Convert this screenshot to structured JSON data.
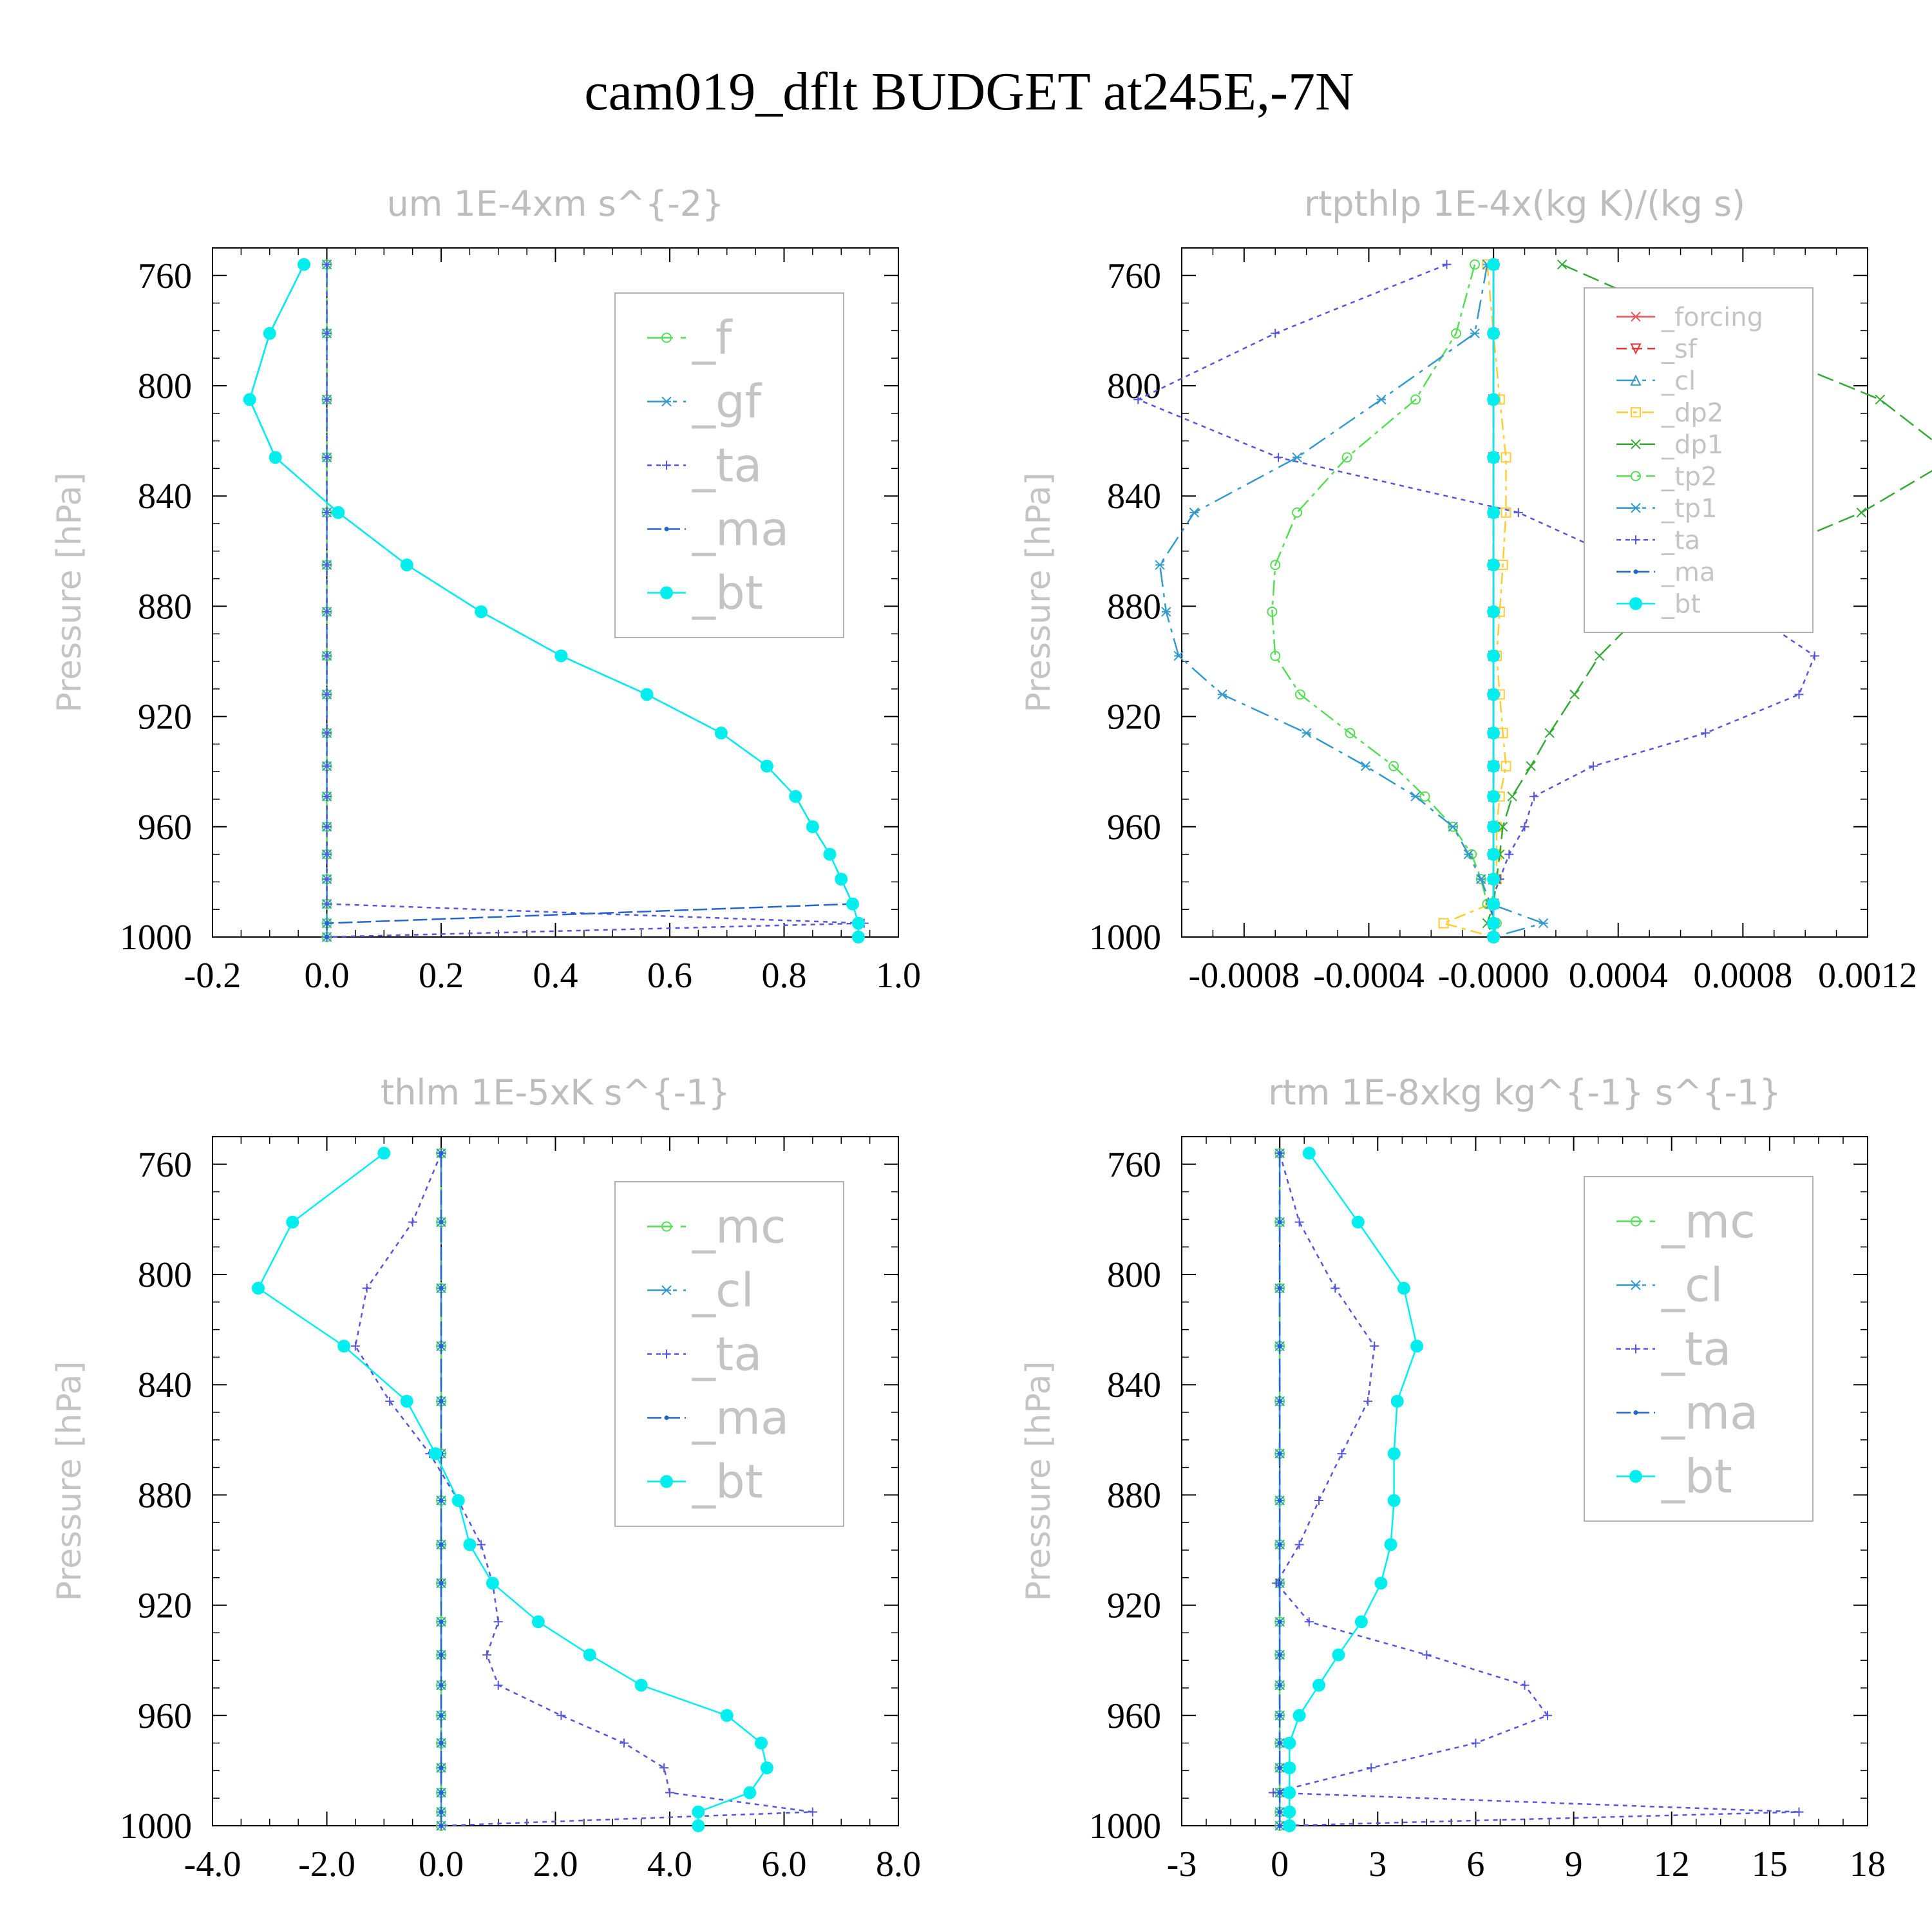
{
  "figure": {
    "title": "cam019_dflt  BUDGET at245E,-7N",
    "ylabel": "Pressure [hPa]"
  },
  "colors": {
    "f": "#55dd55",
    "gf": "#3399cc",
    "ta": "#5555dd",
    "ma": "#2266cc",
    "bt": "#00eeee",
    "mc": "#55dd55",
    "cl": "#3399cc",
    "forcing": "#ee5555",
    "sf": "#ee3333",
    "dp2": "#ffcc33",
    "dp1": "#33aa33",
    "tp2": "#55dd55",
    "tp1": "#3399cc"
  },
  "chart_data": [
    {
      "type": "line",
      "title": "um  1E-4xm s^{-2}",
      "ylabel": "Pressure [hPa]",
      "xlim": [
        -0.2,
        1.0
      ],
      "ylim": [
        1000,
        750
      ],
      "xticks": [
        "-0.2",
        "0.0",
        "0.2",
        "0.4",
        "0.6",
        "0.8",
        "1.0"
      ],
      "yticks": [
        "760",
        "800",
        "840",
        "880",
        "920",
        "960",
        "1000"
      ],
      "legend": "upper-right",
      "y": [
        756,
        781,
        805,
        826,
        846,
        865,
        882,
        898,
        912,
        926,
        938,
        949,
        960,
        970,
        979,
        988,
        995,
        1000
      ],
      "series": [
        {
          "name": "_f",
          "marker": "circle",
          "values": [
            0,
            0,
            0,
            0,
            0,
            0,
            0,
            0,
            0,
            0,
            0,
            0,
            0,
            0,
            0,
            0,
            0,
            0
          ]
        },
        {
          "name": "_gf",
          "marker": "star",
          "values": [
            0,
            0,
            0,
            0,
            0,
            0,
            0,
            0,
            0,
            0,
            0,
            0,
            0,
            0,
            0,
            0,
            0,
            0
          ]
        },
        {
          "name": "_ta",
          "marker": "plus",
          "values": [
            0,
            0,
            0,
            0,
            0,
            0,
            0,
            0,
            0,
            0,
            0,
            0,
            0,
            0,
            0,
            0,
            0.94,
            0
          ]
        },
        {
          "name": "_ma",
          "marker": "dot",
          "values": [
            -0.04,
            -0.1,
            -0.135,
            -0.09,
            0.02,
            0.14,
            0.27,
            0.41,
            0.56,
            0.69,
            0.77,
            0.82,
            0.85,
            0.88,
            0.9,
            0.92,
            0,
            0
          ]
        },
        {
          "name": "_bt",
          "marker": "filled",
          "values": [
            -0.04,
            -0.1,
            -0.135,
            -0.09,
            0.02,
            0.14,
            0.27,
            0.41,
            0.56,
            0.69,
            0.77,
            0.82,
            0.85,
            0.88,
            0.9,
            0.92,
            0.93,
            0.93
          ]
        }
      ]
    },
    {
      "type": "line",
      "title": "rtpthlp  1E-4x(kg K)/(kg s)",
      "ylabel": "Pressure [hPa]",
      "xlim": [
        -0.001,
        0.0012
      ],
      "ylim": [
        1000,
        750
      ],
      "xticks": [
        "-0.0008",
        "-0.0004",
        "-0.0000",
        "0.0004",
        "0.0008",
        "0.0012"
      ],
      "yticks": [
        "760",
        "800",
        "840",
        "880",
        "920",
        "960",
        "1000"
      ],
      "legend": "upper-right",
      "y": [
        756,
        781,
        805,
        826,
        846,
        865,
        882,
        898,
        912,
        926,
        938,
        949,
        960,
        970,
        979,
        988,
        995,
        1000
      ],
      "series": [
        {
          "name": "_forcing",
          "marker": "star",
          "values": [
            0,
            0,
            0,
            0,
            0,
            0,
            0,
            0,
            0,
            0,
            0,
            0,
            0,
            0,
            0,
            0,
            0,
            0
          ]
        },
        {
          "name": "_sf",
          "marker": "triangle-down",
          "values": [
            0,
            0,
            0,
            0,
            0,
            0,
            0,
            0,
            0,
            0,
            0,
            0,
            0,
            0,
            0,
            0,
            0,
            0
          ]
        },
        {
          "name": "_cl",
          "marker": "triangle",
          "values": [
            0,
            0,
            0,
            0,
            0,
            0,
            0,
            0,
            0,
            0,
            0,
            0,
            0,
            0,
            0,
            0,
            0,
            0
          ]
        },
        {
          "name": "_dp2",
          "marker": "square",
          "values": [
            -2e-05,
            0,
            2e-05,
            4e-05,
            4e-05,
            3e-05,
            2e-05,
            1e-05,
            2e-05,
            3e-05,
            4e-05,
            2e-05,
            1e-05,
            1e-05,
            1e-05,
            -1e-05,
            -0.00016,
            0
          ]
        },
        {
          "name": "_dp1",
          "marker": "x",
          "values": [
            0.00022,
            0.00072,
            0.00124,
            0.00148,
            0.00118,
            0.00078,
            0.00048,
            0.00034,
            0.00026,
            0.00018,
            0.00012,
            6e-05,
            3e-05,
            2e-05,
            1e-05,
            0,
            -2e-05,
            0
          ]
        },
        {
          "name": "_tp2",
          "marker": "circle",
          "values": [
            -6e-05,
            -0.00012,
            -0.00025,
            -0.00047,
            -0.00063,
            -0.0007,
            -0.00071,
            -0.0007,
            -0.00062,
            -0.00046,
            -0.00032,
            -0.00022,
            -0.00013,
            -7e-05,
            -4e-05,
            -2e-05,
            1e-05,
            0
          ]
        },
        {
          "name": "_tp1",
          "marker": "star",
          "values": [
            -2e-05,
            -6e-05,
            -0.00036,
            -0.00063,
            -0.00096,
            -0.00107,
            -0.00105,
            -0.00101,
            -0.00087,
            -0.0006,
            -0.00041,
            -0.00025,
            -0.00013,
            -8e-05,
            -4e-05,
            -1e-05,
            0.00016,
            0
          ]
        },
        {
          "name": "_ta",
          "marker": "plus",
          "values": [
            -0.00015,
            -0.0007,
            -0.00114,
            -0.00069,
            8e-05,
            0.00045,
            0.00082,
            0.00103,
            0.00098,
            0.00068,
            0.00032,
            0.00013,
            0.0001,
            5e-05,
            2e-05,
            -1e-05,
            0,
            0
          ]
        },
        {
          "name": "_ma",
          "marker": "dot",
          "values": [
            0,
            0,
            0,
            0,
            0,
            0,
            0,
            0,
            0,
            0,
            0,
            0,
            0,
            0,
            0,
            0,
            0,
            0
          ]
        },
        {
          "name": "_bt",
          "marker": "filled",
          "values": [
            0,
            0,
            0,
            0,
            0,
            0,
            0,
            0,
            0,
            0,
            0,
            0,
            0,
            0,
            0,
            0,
            0,
            0
          ]
        }
      ]
    },
    {
      "type": "line",
      "title": "thlm  1E-5xK s^{-1}",
      "ylabel": "Pressure [hPa]",
      "xlim": [
        -4.0,
        8.0
      ],
      "ylim": [
        1000,
        750
      ],
      "xticks": [
        "-4.0",
        "-2.0",
        "0.0",
        "2.0",
        "4.0",
        "6.0",
        "8.0"
      ],
      "yticks": [
        "760",
        "800",
        "840",
        "880",
        "920",
        "960",
        "1000"
      ],
      "legend": "upper-right",
      "y": [
        756,
        781,
        805,
        826,
        846,
        865,
        882,
        898,
        912,
        926,
        938,
        949,
        960,
        970,
        979,
        988,
        995,
        1000
      ],
      "series": [
        {
          "name": "_mc",
          "marker": "circle",
          "values": [
            0,
            0,
            0,
            0,
            0,
            0,
            0,
            0,
            0,
            0,
            0,
            0,
            0,
            0,
            0,
            0,
            0,
            0
          ]
        },
        {
          "name": "_cl",
          "marker": "star",
          "values": [
            0,
            0,
            0,
            0,
            0,
            0,
            0,
            0,
            0,
            0,
            0,
            0,
            0,
            0,
            0,
            0,
            0,
            0
          ]
        },
        {
          "name": "_ta",
          "marker": "plus",
          "values": [
            0,
            -0.5,
            -1.3,
            -1.5,
            -0.9,
            -0.2,
            0.3,
            0.7,
            0.9,
            1.0,
            0.8,
            1.0,
            2.1,
            3.2,
            3.9,
            4.0,
            6.5,
            0
          ]
        },
        {
          "name": "_ma",
          "marker": "dot",
          "values": [
            0,
            0,
            0,
            0,
            0,
            0,
            0,
            0,
            0,
            0,
            0,
            0,
            0,
            0,
            0,
            0,
            0,
            0
          ]
        },
        {
          "name": "_bt",
          "marker": "filled",
          "values": [
            -1.0,
            -2.6,
            -3.2,
            -1.7,
            -0.6,
            -0.1,
            0.3,
            0.5,
            0.9,
            1.7,
            2.6,
            3.5,
            5.0,
            5.6,
            5.7,
            5.4,
            4.5,
            4.5
          ]
        }
      ]
    },
    {
      "type": "line",
      "title": "rtm  1E-8xkg kg^{-1} s^{-1}",
      "ylabel": "Pressure [hPa]",
      "xlim": [
        -3,
        18
      ],
      "ylim": [
        1000,
        750
      ],
      "xticks": [
        "-3",
        "0",
        "3",
        "6",
        "9",
        "12",
        "15",
        "18"
      ],
      "yticks": [
        "760",
        "800",
        "840",
        "880",
        "920",
        "960",
        "1000"
      ],
      "legend": "upper-right",
      "y": [
        756,
        781,
        805,
        826,
        846,
        865,
        882,
        898,
        912,
        926,
        938,
        949,
        960,
        970,
        979,
        988,
        995,
        1000
      ],
      "series": [
        {
          "name": "_mc",
          "marker": "circle",
          "values": [
            0,
            0,
            0,
            0,
            0,
            0,
            0,
            0,
            0,
            0,
            0,
            0,
            0,
            0,
            0,
            0,
            0,
            0
          ]
        },
        {
          "name": "_cl",
          "marker": "star",
          "values": [
            0,
            0,
            0,
            0,
            0,
            0,
            0,
            0,
            0,
            0,
            0,
            0,
            0,
            0,
            0,
            0,
            0,
            0
          ]
        },
        {
          "name": "_ta",
          "marker": "plus",
          "values": [
            0,
            0.6,
            1.7,
            2.9,
            2.7,
            1.9,
            1.2,
            0.6,
            -0.1,
            0.9,
            4.5,
            7.5,
            8.2,
            6.0,
            2.8,
            -0.2,
            15.9,
            0
          ]
        },
        {
          "name": "_ma",
          "marker": "dot",
          "values": [
            0,
            0,
            0,
            0,
            0,
            0,
            0,
            0,
            0,
            0,
            0,
            0,
            0,
            0,
            0,
            0,
            0,
            0
          ]
        },
        {
          "name": "_bt",
          "marker": "filled",
          "values": [
            0.9,
            2.4,
            3.8,
            4.2,
            3.6,
            3.5,
            3.5,
            3.4,
            3.1,
            2.5,
            1.8,
            1.2,
            0.6,
            0.3,
            0.3,
            0.3,
            0.3,
            0.3
          ]
        }
      ]
    }
  ]
}
